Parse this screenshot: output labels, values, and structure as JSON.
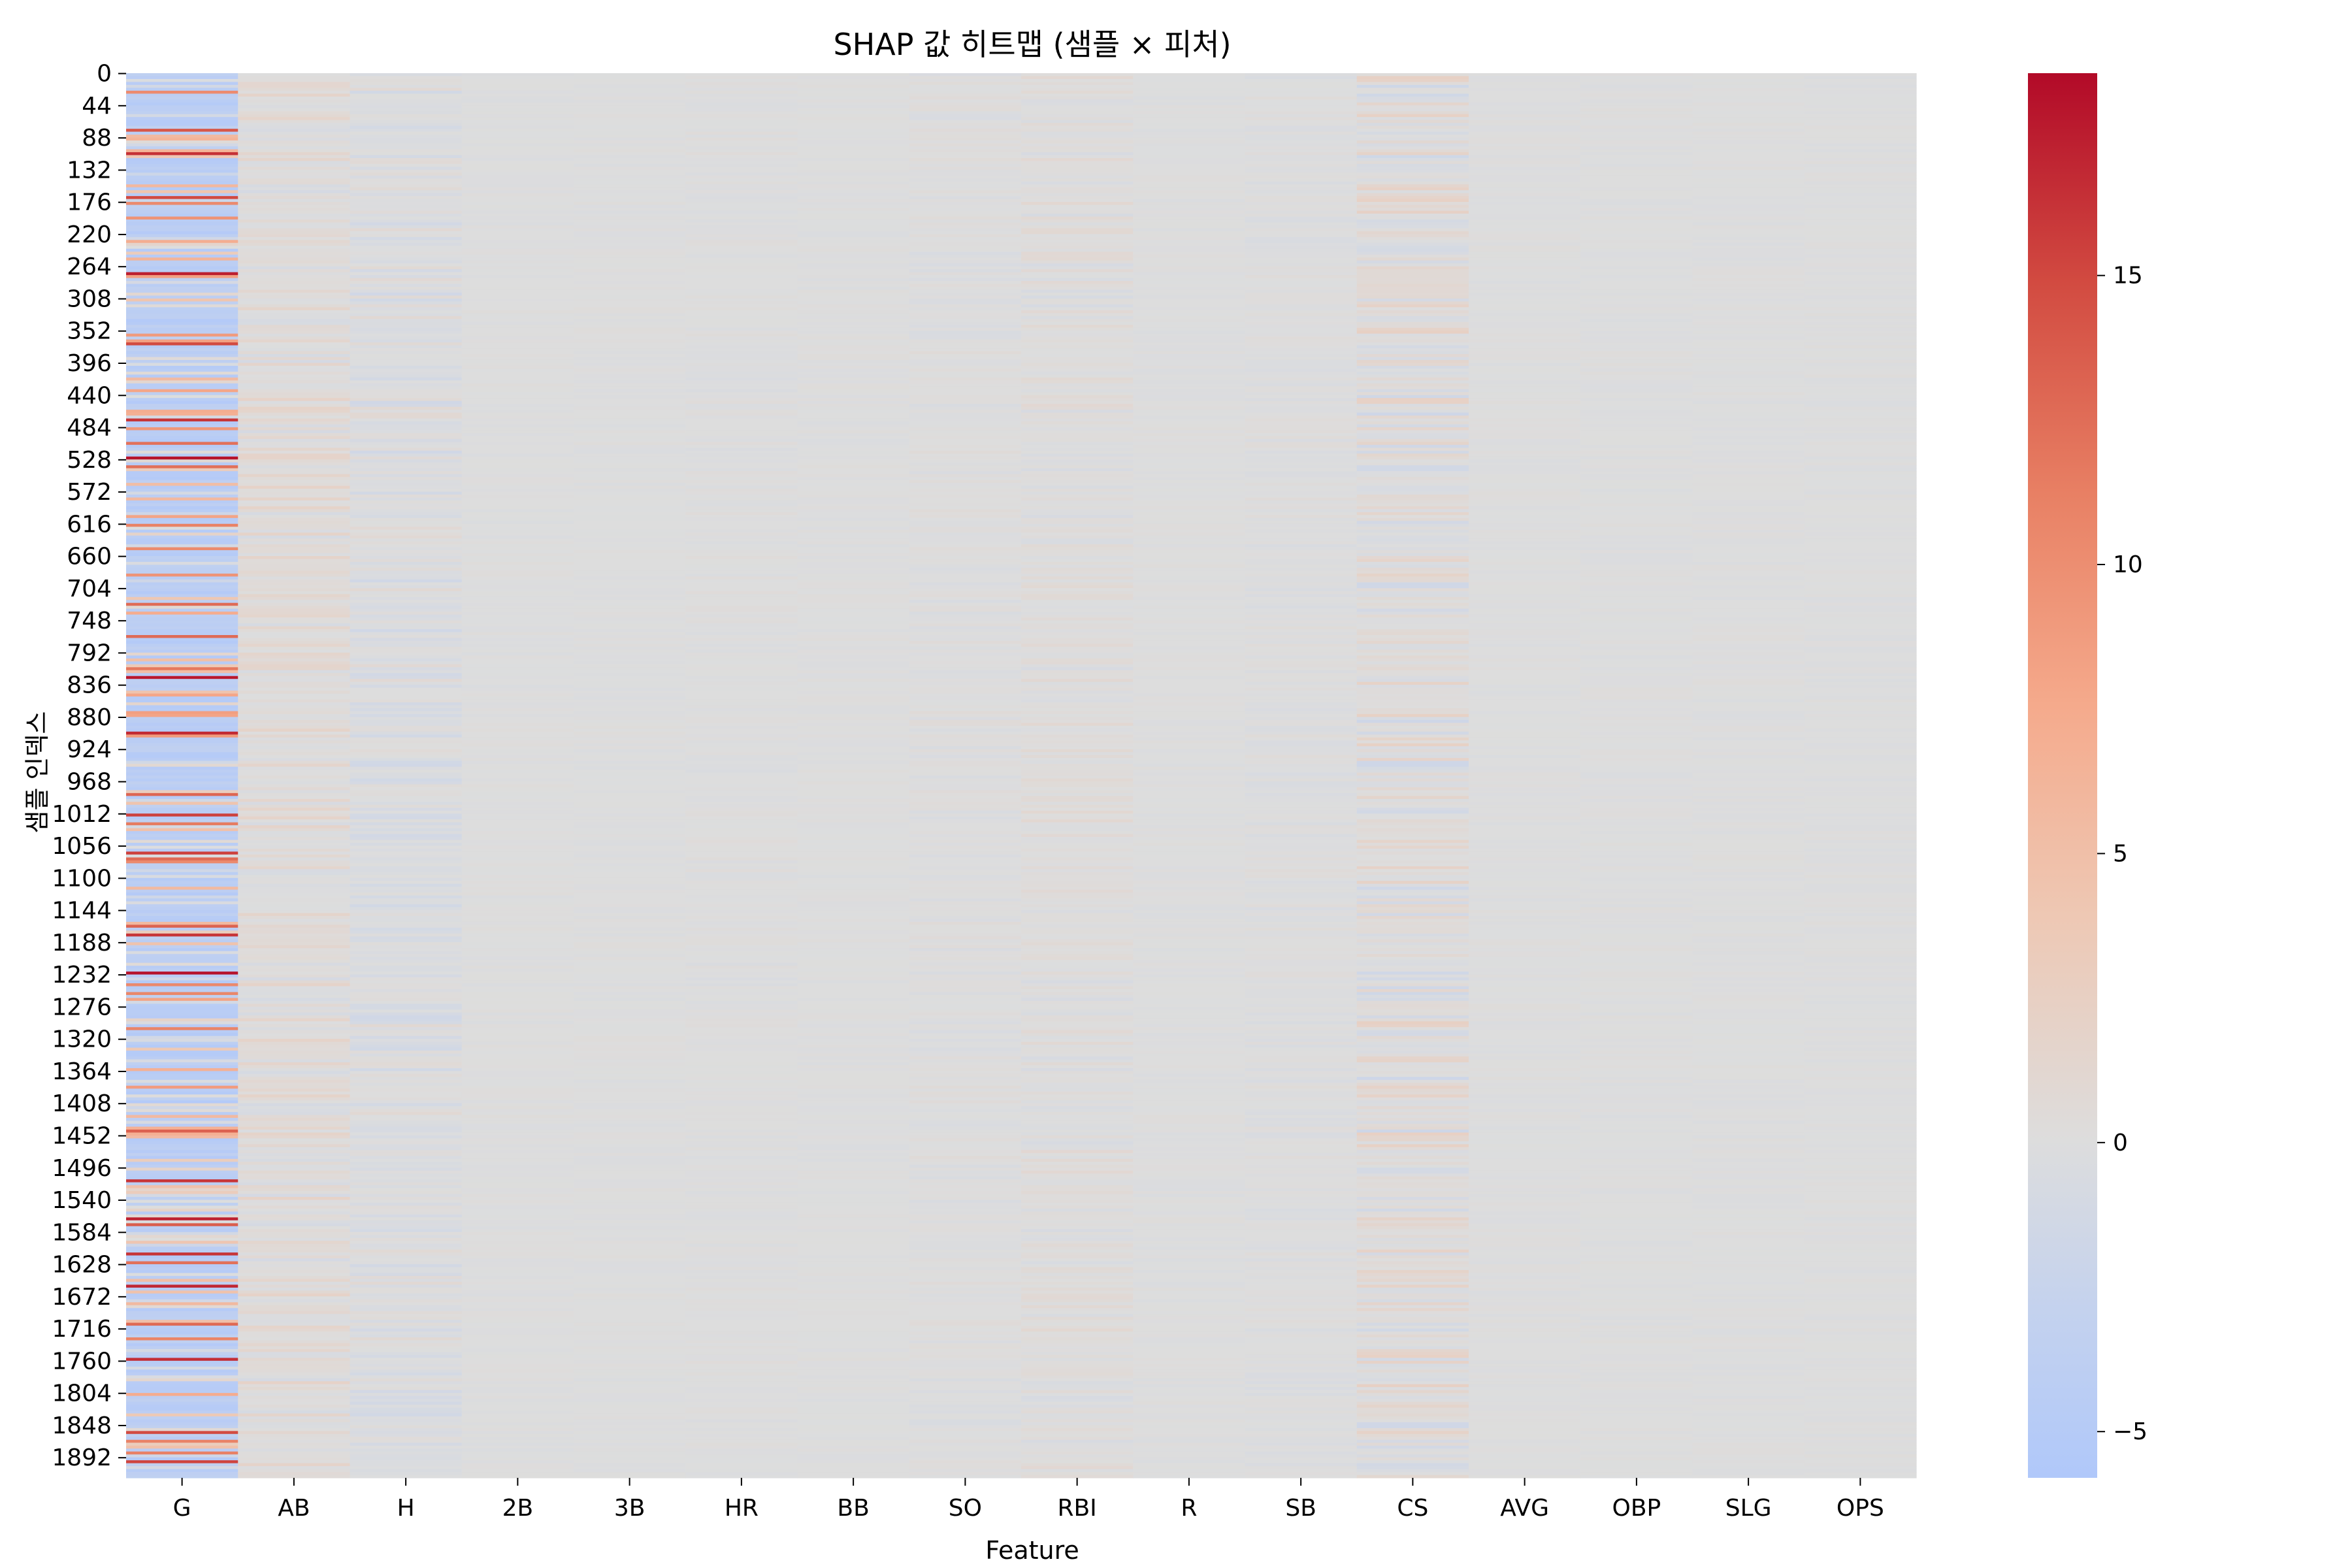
{
  "chart_data": {
    "type": "heatmap",
    "title": "SHAP 값 히트맵 (샘플 × 피처)",
    "xlabel": "Feature",
    "ylabel": "샘플 인덱스",
    "x_categories": [
      "G",
      "AB",
      "H",
      "2B",
      "3B",
      "HR",
      "BB",
      "SO",
      "RBI",
      "R",
      "SB",
      "CS",
      "AVG",
      "OBP",
      "SLG",
      "OPS"
    ],
    "y_tick_labels": [
      "0",
      "44",
      "88",
      "132",
      "176",
      "220",
      "264",
      "308",
      "352",
      "396",
      "440",
      "484",
      "528",
      "572",
      "616",
      "660",
      "704",
      "748",
      "792",
      "836",
      "880",
      "924",
      "968",
      "1012",
      "1056",
      "1100",
      "1144",
      "1188",
      "1232",
      "1276",
      "1320",
      "1364",
      "1408",
      "1452",
      "1496",
      "1540",
      "1584",
      "1628",
      "1672",
      "1716",
      "1760",
      "1804",
      "1848",
      "1892"
    ],
    "y_range": [
      0,
      1920
    ],
    "colormap": "coolwarm",
    "color_range": [
      -5.8,
      18.5
    ],
    "colorbar_ticks": [
      {
        "value": -5,
        "label": "−5"
      },
      {
        "value": 0,
        "label": "0"
      },
      {
        "value": 5,
        "label": "5"
      },
      {
        "value": 10,
        "label": "10"
      },
      {
        "value": 15,
        "label": "15"
      }
    ],
    "feature_value_profile": [
      {
        "feature": "G",
        "typical_min": -5.8,
        "typical_max": 18.5
      },
      {
        "feature": "AB",
        "typical_min": -1.0,
        "typical_max": 2.0
      },
      {
        "feature": "H",
        "typical_min": -1.5,
        "typical_max": 1.0
      },
      {
        "feature": "2B",
        "typical_min": -0.3,
        "typical_max": 0.3
      },
      {
        "feature": "3B",
        "typical_min": -0.3,
        "typical_max": 0.3
      },
      {
        "feature": "HR",
        "typical_min": -0.4,
        "typical_max": 0.4
      },
      {
        "feature": "BB",
        "typical_min": -0.3,
        "typical_max": 0.3
      },
      {
        "feature": "SO",
        "typical_min": -0.6,
        "typical_max": 0.6
      },
      {
        "feature": "RBI",
        "typical_min": -0.8,
        "typical_max": 1.2
      },
      {
        "feature": "R",
        "typical_min": -0.3,
        "typical_max": 0.3
      },
      {
        "feature": "SB",
        "typical_min": -0.6,
        "typical_max": 0.5
      },
      {
        "feature": "CS",
        "typical_min": -1.8,
        "typical_max": 2.5
      },
      {
        "feature": "AVG",
        "typical_min": -0.3,
        "typical_max": 0.3
      },
      {
        "feature": "OBP",
        "typical_min": -0.3,
        "typical_max": 0.3
      },
      {
        "feature": "SLG",
        "typical_min": -0.3,
        "typical_max": 0.3
      },
      {
        "feature": "OPS",
        "typical_min": -0.3,
        "typical_max": 0.3
      }
    ]
  }
}
